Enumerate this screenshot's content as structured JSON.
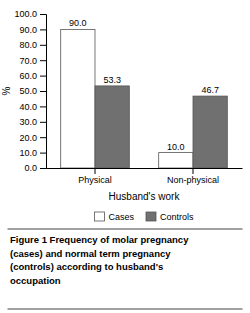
{
  "chart_data": {
    "type": "bar",
    "categories": [
      "Physical",
      "Non-physical"
    ],
    "series": [
      {
        "name": "Cases",
        "color": "#ffffff",
        "values": [
          90.0,
          10.0
        ],
        "value_labels": [
          "90.0",
          "10.0"
        ]
      },
      {
        "name": "Controls",
        "color": "#707070",
        "values": [
          53.3,
          46.7
        ],
        "value_labels": [
          "53.3",
          "46.7"
        ]
      }
    ],
    "xlabel": "Husband's work",
    "ylabel": "%",
    "ylim": [
      0,
      100.0
    ],
    "yticks": [
      {
        "value": 0.0,
        "label": "0.0"
      },
      {
        "value": 10.0,
        "label": "10.0"
      },
      {
        "value": 20.0,
        "label": "20.0"
      },
      {
        "value": 30.0,
        "label": "30.0"
      },
      {
        "value": 40.0,
        "label": "40.0"
      },
      {
        "value": 50.0,
        "label": "50.0"
      },
      {
        "value": 60.0,
        "label": "60.0"
      },
      {
        "value": 70.0,
        "label": "70.0"
      },
      {
        "value": 80.0,
        "label": "80.0"
      },
      {
        "value": 90.0,
        "label": "90.0"
      },
      {
        "value": 100.0,
        "label": "100.0"
      }
    ],
    "grid": false,
    "legend": "bottom",
    "data_labels": true,
    "caption": "Figure 1 Frequency of molar pregnancy\n(cases) and normal term pregnancy\n(controls) according to husband's\noccupation"
  }
}
